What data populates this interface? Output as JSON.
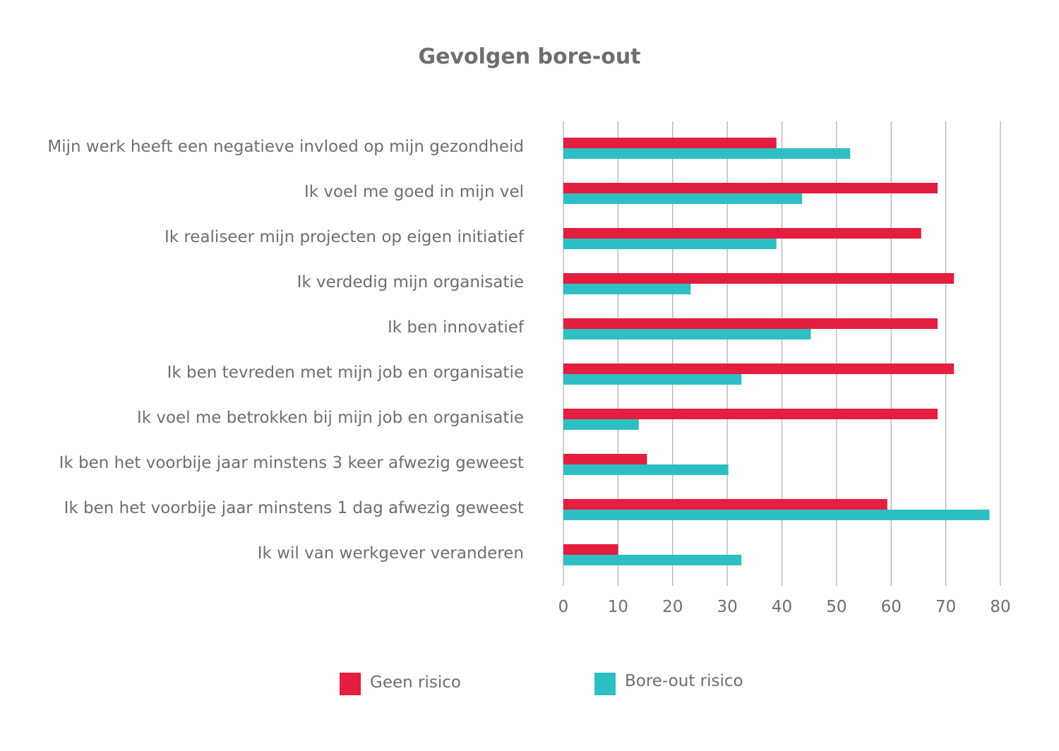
{
  "chart_data": {
    "type": "bar",
    "orientation": "horizontal",
    "title": "Gevolgen bore-out",
    "categories": [
      "Mijn werk heeft een negatieve invloed op mijn gezondheid",
      "Ik voel me goed in mijn vel",
      "Ik realiseer mijn projecten op eigen initiatief",
      "Ik verdedig mijn organisatie",
      "Ik ben innovatief",
      "Ik ben tevreden met mijn job en organisatie",
      "Ik voel me betrokken bij mijn job en organisatie",
      "Ik ben het voorbije jaar minstens 3 keer afwezig geweest",
      "Ik ben het voorbije jaar minstens 1 dag afwezig geweest",
      "Ik wil van werkgever veranderen"
    ],
    "series": [
      {
        "name": "Geen risico",
        "color": "#e31e3f",
        "values": [
          39,
          68.5,
          65.5,
          71.5,
          68.5,
          71.5,
          68.5,
          15.3,
          59.3,
          10
        ]
      },
      {
        "name": "Bore-out risico",
        "color": "#2dbfc3",
        "values": [
          52.5,
          43.7,
          39,
          23.3,
          45.3,
          32.6,
          13.8,
          30.2,
          78,
          32.6
        ]
      }
    ],
    "xlim": [
      0,
      80
    ],
    "xticks": [
      "0",
      "10",
      "20",
      "30",
      "40",
      "50",
      "60",
      "70",
      "80"
    ],
    "xlabel": "",
    "ylabel": "",
    "grid": "vertical",
    "legend": "bottom"
  }
}
